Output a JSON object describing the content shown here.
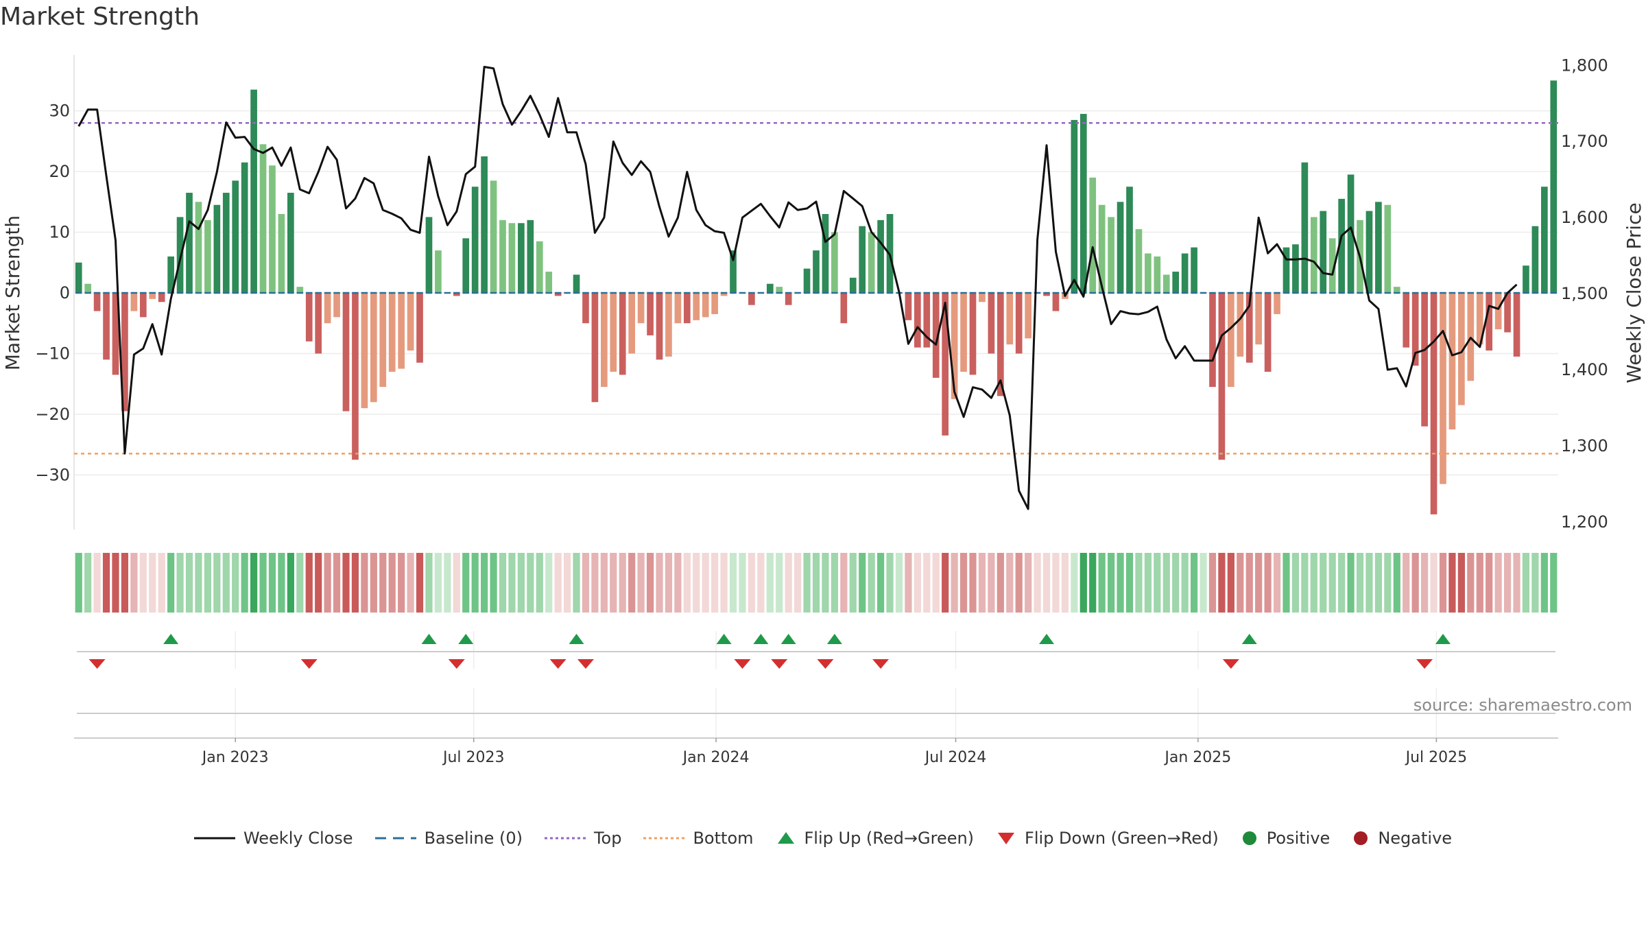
{
  "chart_data": {
    "type": "bar+line",
    "title": "Market Strength",
    "ylabel_left": "Market Strength",
    "ylabel_right": "Weekly Close Price",
    "ylim_left": [
      -39,
      39
    ],
    "ylim_right": [
      1190,
      1812
    ],
    "yticks_left": [
      30,
      20,
      10,
      0,
      -10,
      -20,
      -30
    ],
    "yticks_left_labels": [
      "30",
      "20",
      "10",
      "0",
      "−10",
      "−20",
      "−30"
    ],
    "yticks_right": [
      1800,
      1700,
      1600,
      1500,
      1400,
      1300,
      1200
    ],
    "yticks_right_labels": [
      "1,800",
      "1,700",
      "1,600",
      "1,500",
      "1,400",
      "1,300",
      "1,200"
    ],
    "x_start": "2022-09-04",
    "week_ms": 604800000,
    "xticks": [
      {
        "date": "2023-01-01",
        "label": "Jan 2023"
      },
      {
        "date": "2023-07-01",
        "label": "Jul 2023"
      },
      {
        "date": "2024-01-01",
        "label": "Jan 2024"
      },
      {
        "date": "2024-07-01",
        "label": "Jul 2024"
      },
      {
        "date": "2025-01-01",
        "label": "Jan 2025"
      },
      {
        "date": "2025-07-01",
        "label": "Jul 2025"
      }
    ],
    "top_line": 28,
    "bottom_line": -26.5,
    "strength": [
      5,
      1.5,
      -3,
      -11,
      -13.5,
      -19.5,
      -3,
      -4,
      -1,
      -1.5,
      6,
      12.5,
      16.5,
      15,
      12,
      14.5,
      16.5,
      18.5,
      21.5,
      33.5,
      24.5,
      21,
      13,
      16.5,
      1,
      -8,
      -10,
      -5,
      -4,
      -19.5,
      -27.5,
      -19,
      -18,
      -15.5,
      -13,
      -12.5,
      -9.5,
      -11.5,
      12.5,
      7,
      0,
      -0.5,
      9,
      17.5,
      22.5,
      18.5,
      12,
      11.5,
      11.5,
      12,
      8.5,
      3.5,
      -0.5,
      0,
      3,
      -5,
      -18,
      -15.5,
      -13,
      -13.5,
      -10,
      -5,
      -7,
      -11,
      -10.5,
      -5,
      -5,
      -4.5,
      -4,
      -3.5,
      -0.5,
      7,
      0,
      -2,
      0,
      1.5,
      1,
      -2,
      0,
      4,
      7,
      13,
      10,
      -5,
      2.5,
      11,
      10,
      12,
      13,
      0,
      -4.5,
      -9,
      -9,
      -14,
      -23.5,
      -17.5,
      -13,
      -13.5,
      -1.5,
      -10,
      -17,
      -8.5,
      -10,
      -7.5,
      0,
      -0.5,
      -3,
      -1,
      28.5,
      29.5,
      19,
      14.5,
      12.5,
      15,
      17.5,
      10.5,
      6.5,
      6,
      3,
      3.5,
      6.5,
      7.5,
      0,
      -15.5,
      -27.5,
      -15.5,
      -10.5,
      -11.5,
      -8.5,
      -13,
      -3.5,
      7.5,
      8,
      21.5,
      12.5,
      13.5,
      9,
      15.5,
      19.5,
      12,
      13.5,
      15,
      14.5,
      1,
      -9,
      -12,
      -22,
      -36.5,
      -31.5,
      -22.5,
      -18.5,
      -14.5,
      -8.5,
      -9.5,
      -6,
      -6.5,
      -10.5,
      4.5,
      11,
      17.5,
      35
    ],
    "close": [
      1720,
      1742,
      1742,
      1655,
      1570,
      1290,
      1420,
      1428,
      1460,
      1420,
      1493,
      1545,
      1595,
      1585,
      1610,
      1660,
      1725,
      1705,
      1706,
      1690,
      1685,
      1692,
      1668,
      1692,
      1637,
      1632,
      1660,
      1693,
      1676,
      1612,
      1625,
      1652,
      1645,
      1610,
      1605,
      1599,
      1584,
      1580,
      1680,
      1628,
      1590,
      1608,
      1657,
      1667,
      1798,
      1796,
      1749,
      1722,
      1740,
      1760,
      1735,
      1706,
      1757,
      1712,
      1712,
      1670,
      1580,
      1600,
      1700,
      1672,
      1656,
      1674,
      1660,
      1614,
      1575,
      1600,
      1660,
      1610,
      1590,
      1582,
      1580,
      1544,
      1600,
      1609,
      1618,
      1602,
      1587,
      1620,
      1610,
      1612,
      1621,
      1568,
      1578,
      1635,
      1625,
      1615,
      1581,
      1567,
      1551,
      1502,
      1434,
      1456,
      1443,
      1433,
      1488,
      1371,
      1338,
      1377,
      1374,
      1363,
      1386,
      1340,
      1241,
      1217,
      1571,
      1695,
      1555,
      1497,
      1518,
      1496,
      1561,
      1509,
      1460,
      1477,
      1474,
      1473,
      1476,
      1483,
      1440,
      1415,
      1431,
      1412,
      1412,
      1412,
      1445,
      1455,
      1467,
      1484,
      1600,
      1553,
      1565,
      1545,
      1545,
      1546,
      1542,
      1527,
      1525,
      1576,
      1587,
      1548,
      1491,
      1480,
      1400,
      1402,
      1378,
      1422,
      1426,
      1437,
      1451,
      1419,
      1423,
      1442,
      1430,
      1484,
      1480,
      1501,
      1512
    ],
    "tile_shade": [
      2,
      3,
      4,
      1,
      1,
      1,
      3,
      4,
      4,
      4,
      2,
      3,
      3,
      3,
      3,
      3,
      3,
      3,
      2,
      1,
      2,
      2,
      2,
      1,
      3,
      1,
      1,
      2,
      2,
      1,
      1,
      2,
      2,
      2,
      2,
      2,
      3,
      1,
      3,
      4,
      3,
      4,
      2,
      2,
      2,
      2,
      3,
      3,
      3,
      3,
      3,
      4,
      4,
      4,
      3,
      3,
      3,
      3,
      3,
      3,
      2,
      3,
      2,
      3,
      3,
      3,
      4,
      4,
      4,
      4,
      4,
      4,
      4,
      4,
      4,
      4,
      4,
      4,
      4,
      3,
      3,
      3,
      3,
      3,
      3,
      2,
      3,
      2,
      3,
      3,
      3,
      4,
      4,
      4,
      1,
      3,
      2,
      2,
      3,
      3,
      2,
      3,
      2,
      3,
      3,
      4,
      4,
      4,
      4,
      1,
      1,
      2,
      2,
      2,
      2,
      3,
      3,
      3,
      3,
      3,
      3,
      2,
      2,
      2,
      1,
      1,
      2,
      2,
      2,
      2,
      3,
      2,
      3,
      3,
      3,
      3,
      3,
      3,
      2,
      3,
      3,
      3,
      3,
      2,
      3,
      2,
      3,
      4,
      2,
      1,
      1,
      2,
      2,
      2,
      3,
      3,
      3,
      3,
      3,
      2,
      2,
      1
    ],
    "flip_up_weeks": [
      10,
      38,
      42,
      54,
      70,
      74,
      77,
      82,
      105,
      127,
      148
    ],
    "flip_down_weeks": [
      2,
      25,
      41,
      52,
      55,
      72,
      76,
      81,
      87,
      125,
      146
    ],
    "colors": {
      "pos_strong": "#2e8a57",
      "pos_light": "#7fc280",
      "neg_strong": "#c9605e",
      "neg_light": "#e59a7e",
      "price_line": "#111111",
      "baseline": "#2a6f97",
      "top_line": "#9467bd",
      "bottom_line": "#f0a060",
      "flip_up": "#1f9a4a",
      "flip_down": "#d32f2f",
      "positive": "#1e8a3a",
      "negative": "#a31d24"
    }
  },
  "source": "source: sharemaestro.com",
  "legend": [
    {
      "key": "close",
      "label": "Weekly Close",
      "icon": "solid-line"
    },
    {
      "key": "baseline",
      "label": "Baseline (0)",
      "icon": "dashed-line"
    },
    {
      "key": "top",
      "label": "Top",
      "icon": "dotted-line"
    },
    {
      "key": "bottom",
      "label": "Bottom",
      "icon": "dotted-line"
    },
    {
      "key": "flip_up",
      "label": "Flip Up (Red→Green)",
      "icon": "triangle-up"
    },
    {
      "key": "flip_down",
      "label": "Flip Down (Green→Red)",
      "icon": "triangle-down"
    },
    {
      "key": "positive",
      "label": "Positive",
      "icon": "circle"
    },
    {
      "key": "negative",
      "label": "Negative",
      "icon": "circle"
    }
  ]
}
